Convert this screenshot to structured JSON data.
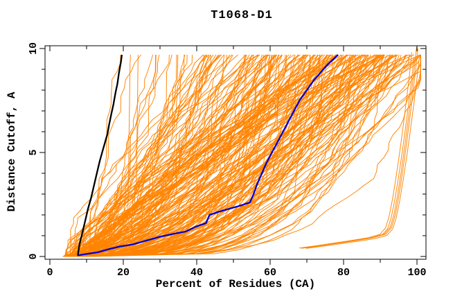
{
  "chart_data": {
    "type": "line",
    "title": "T1068-D1",
    "xlabel": "Percent of Residues (CA)",
    "ylabel": "Distance Cutoff, A",
    "xlim": [
      0,
      100
    ],
    "ylim": [
      0,
      10
    ],
    "grid": false,
    "legend": "none",
    "x_ticks": {
      "major": [
        0,
        20,
        40,
        60,
        80,
        100
      ],
      "minor_step": 10,
      "labels": [
        "0",
        "20",
        "40",
        "60",
        "80",
        "100"
      ]
    },
    "y_ticks": {
      "major": [
        0,
        5,
        10
      ],
      "minor_step": 1,
      "labels": [
        "0",
        "5",
        "10"
      ]
    },
    "colors": {
      "background": "#ffffff",
      "axis": "#000000",
      "ensemble_orange": "#ff8400",
      "reference_black": "#000000",
      "selected_blue": "#0000cd"
    },
    "series": [
      {
        "name": "reference-model-black",
        "color": "#000000",
        "width": 2.3,
        "points": [
          [
            7.6,
            0.05
          ],
          [
            8.1,
            0.6
          ],
          [
            8.8,
            1.1
          ],
          [
            9.6,
            1.7
          ],
          [
            10.4,
            2.3
          ],
          [
            11.2,
            2.8
          ],
          [
            12.0,
            3.4
          ],
          [
            12.8,
            4.0
          ],
          [
            13.6,
            4.6
          ],
          [
            14.4,
            5.1
          ],
          [
            15.2,
            5.6
          ],
          [
            15.7,
            5.9
          ],
          [
            16.1,
            6.3
          ],
          [
            16.8,
            6.9
          ],
          [
            17.3,
            7.3
          ],
          [
            17.9,
            7.9
          ],
          [
            18.4,
            8.3
          ],
          [
            18.8,
            8.8
          ],
          [
            19.1,
            9.1
          ],
          [
            19.4,
            9.4
          ],
          [
            19.6,
            9.7
          ]
        ]
      },
      {
        "name": "selected-model-blue",
        "color": "#0000cd",
        "width": 2.3,
        "points": [
          [
            7.5,
            0.05
          ],
          [
            10,
            0.12
          ],
          [
            13,
            0.2
          ],
          [
            16,
            0.35
          ],
          [
            19,
            0.48
          ],
          [
            22.4,
            0.57
          ],
          [
            26,
            0.75
          ],
          [
            30,
            0.95
          ],
          [
            34,
            1.1
          ],
          [
            37,
            1.2
          ],
          [
            40,
            1.45
          ],
          [
            42.5,
            1.6
          ],
          [
            43.5,
            2.0
          ],
          [
            46,
            2.15
          ],
          [
            49,
            2.3
          ],
          [
            52,
            2.45
          ],
          [
            54.5,
            2.6
          ],
          [
            55.5,
            3.0
          ],
          [
            56.5,
            3.5
          ],
          [
            57.5,
            3.9
          ],
          [
            59,
            4.5
          ],
          [
            60.5,
            5.0
          ],
          [
            62,
            5.5
          ],
          [
            63.5,
            6.0
          ],
          [
            65,
            6.5
          ],
          [
            66.5,
            7.0
          ],
          [
            68,
            7.5
          ],
          [
            70,
            8.0
          ],
          [
            72,
            8.5
          ],
          [
            74,
            8.9
          ],
          [
            75.5,
            9.2
          ],
          [
            77,
            9.45
          ],
          [
            78.5,
            9.7
          ]
        ]
      }
    ],
    "ensemble": {
      "name": "prediction-models-orange",
      "color": "#ff8400",
      "count": 215,
      "y_top": 9.7,
      "start_x_range": [
        3.5,
        11
      ],
      "top_x_range": [
        19,
        100.5
      ],
      "shape_exp_range": [
        0.2,
        1.45
      ],
      "top_skew": 0.55,
      "jitter": 2.4,
      "seed": 12345
    },
    "outlier_cluster": {
      "name": "outlier-models-orange",
      "color": "#ff8400",
      "count": 5,
      "base_points": [
        [
          69,
          0.4
        ],
        [
          74,
          0.52
        ],
        [
          79,
          0.65
        ],
        [
          84,
          0.78
        ],
        [
          88,
          0.9
        ],
        [
          91,
          1.05
        ],
        [
          92.5,
          1.35
        ],
        [
          93.5,
          1.9
        ],
        [
          94.5,
          2.8
        ],
        [
          95.5,
          3.9
        ],
        [
          96.5,
          5.1
        ],
        [
          97.4,
          6.3
        ],
        [
          98.2,
          7.4
        ],
        [
          98.9,
          8.4
        ],
        [
          99.4,
          9.2
        ],
        [
          99.7,
          9.7
        ]
      ]
    }
  }
}
